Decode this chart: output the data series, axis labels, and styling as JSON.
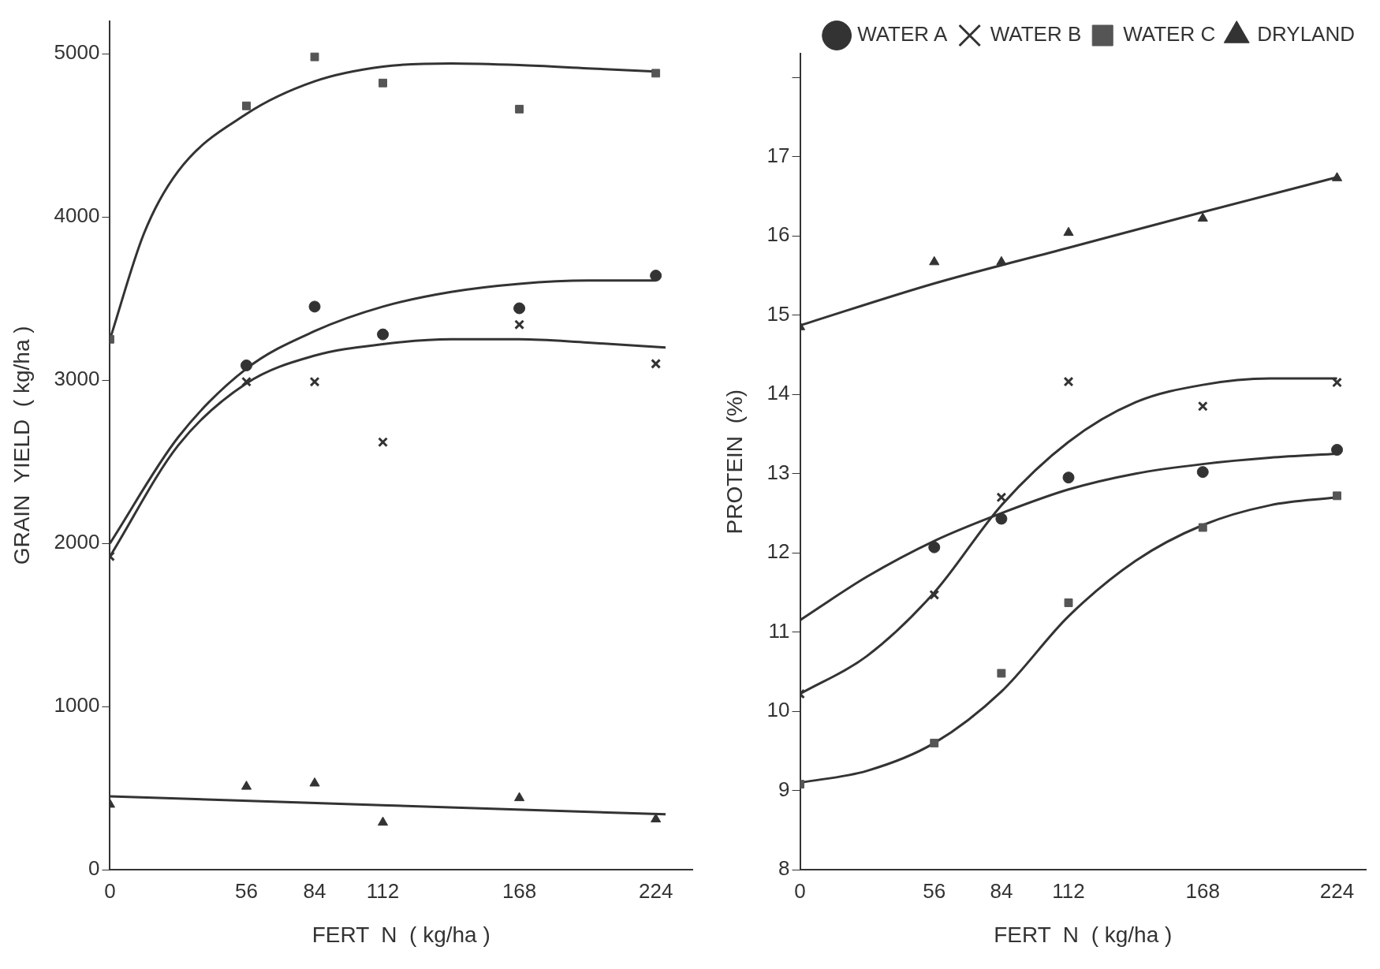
{
  "chart_data": [
    {
      "type": "scatter",
      "xlabel": "FERT  N  ( kg/ha )",
      "ylabel": "GRAIN  YIELD  ( kg/ha )",
      "xlim": [
        0,
        239
      ],
      "ylim": [
        0,
        5200
      ],
      "xticks": [
        0,
        56,
        84,
        112,
        168,
        224
      ],
      "yticks": [
        0,
        1000,
        2000,
        3000,
        4000,
        5000
      ],
      "grid": false,
      "legend": false,
      "series": [
        {
          "color": "#333333",
          "marker": "circle",
          "x": [
            56,
            84,
            112,
            168,
            224
          ],
          "values": [
            3090,
            3450,
            3280,
            3440,
            3640
          ]
        },
        {
          "color": "#333333",
          "marker": "cross",
          "x": [
            0,
            56,
            84,
            112,
            168,
            224
          ],
          "values": [
            1920,
            2990,
            2990,
            2620,
            3340,
            3100
          ]
        },
        {
          "color": "#555555",
          "marker": "square",
          "x": [
            0,
            56,
            84,
            112,
            168,
            224
          ],
          "values": [
            3250,
            4680,
            4980,
            4820,
            4660,
            4880
          ]
        },
        {
          "color": "#333333",
          "marker": "triangle",
          "x": [
            0,
            56,
            84,
            112,
            168,
            224
          ],
          "values": [
            400,
            510,
            530,
            290,
            440,
            310
          ]
        },
        {
          "type": "line",
          "color": "#333333",
          "marker": "none",
          "line_style": "solid",
          "x": [
            0,
            28,
            56,
            84,
            112,
            140,
            168,
            196,
            224
          ],
          "values": [
            2000,
            2650,
            3070,
            3300,
            3450,
            3540,
            3590,
            3610,
            3610
          ]
        },
        {
          "type": "line",
          "color": "#333333",
          "marker": "none",
          "line_style": "solid",
          "x": [
            0,
            28,
            56,
            84,
            112,
            140,
            168,
            196,
            228
          ],
          "values": [
            1920,
            2600,
            2980,
            3150,
            3220,
            3250,
            3250,
            3230,
            3200
          ]
        },
        {
          "type": "line",
          "color": "#333333",
          "marker": "none",
          "line_style": "solid",
          "x": [
            0,
            14,
            28,
            56,
            84,
            112,
            140,
            168,
            196,
            224
          ],
          "values": [
            3250,
            3900,
            4280,
            4630,
            4830,
            4920,
            4940,
            4930,
            4910,
            4890
          ]
        },
        {
          "type": "line",
          "color": "#333333",
          "marker": "none",
          "line_style": "solid",
          "x": [
            0,
            228
          ],
          "values": [
            450,
            340
          ]
        }
      ]
    },
    {
      "type": "scatter",
      "xlabel": "FERT  N  ( kg/ha )",
      "ylabel": "PROTEIN  (%)",
      "xlim": [
        0,
        236
      ],
      "ylim": [
        8,
        18.3
      ],
      "xticks": [
        0,
        56,
        84,
        112,
        168,
        224
      ],
      "yticks": [
        8,
        9,
        10,
        11,
        12,
        13,
        14,
        15,
        16,
        17,
        {
          "value": 18,
          "label": null
        }
      ],
      "grid": false,
      "legend": "top right",
      "series": [
        {
          "name": "WATER A",
          "color": "#333333",
          "marker": "circle",
          "x": [
            56,
            84,
            112,
            168,
            224
          ],
          "values": [
            12.07,
            12.43,
            12.95,
            13.02,
            13.3
          ]
        },
        {
          "name": "WATER B",
          "color": "#333333",
          "marker": "cross",
          "x": [
            0,
            56,
            84,
            112,
            168,
            224
          ],
          "values": [
            10.22,
            11.47,
            12.7,
            14.16,
            13.85,
            14.15
          ]
        },
        {
          "name": "WATER C",
          "color": "#555555",
          "marker": "square",
          "x": [
            0,
            56,
            84,
            112,
            168,
            224
          ],
          "values": [
            9.08,
            9.6,
            10.48,
            11.37,
            12.32,
            12.72
          ]
        },
        {
          "name": "DRYLAND",
          "color": "#333333",
          "marker": "triangle",
          "x": [
            0,
            56,
            84,
            112,
            168,
            224
          ],
          "values": [
            14.85,
            15.67,
            15.67,
            16.04,
            16.22,
            16.73
          ]
        },
        {
          "type": "line",
          "color": "#333333",
          "marker": "none",
          "line_style": "solid",
          "x": [
            0,
            28,
            56,
            84,
            112,
            140,
            168,
            196,
            224
          ],
          "values": [
            11.15,
            11.7,
            12.15,
            12.5,
            12.8,
            13.0,
            13.12,
            13.2,
            13.25
          ]
        },
        {
          "type": "line",
          "color": "#333333",
          "marker": "none",
          "line_style": "solid",
          "x": [
            0,
            28,
            56,
            84,
            112,
            140,
            168,
            196,
            224
          ],
          "values": [
            10.22,
            10.7,
            11.5,
            12.6,
            13.4,
            13.9,
            14.12,
            14.2,
            14.2
          ]
        },
        {
          "type": "line",
          "color": "#333333",
          "marker": "none",
          "line_style": "solid",
          "x": [
            0,
            28,
            56,
            84,
            112,
            140,
            168,
            196,
            224
          ],
          "values": [
            9.1,
            9.25,
            9.6,
            10.25,
            11.2,
            11.9,
            12.35,
            12.6,
            12.7
          ]
        },
        {
          "type": "line",
          "color": "#333333",
          "marker": "none",
          "line_style": "solid",
          "x": [
            0,
            56,
            112,
            168,
            224
          ],
          "values": [
            14.87,
            15.4,
            15.85,
            16.3,
            16.74
          ]
        }
      ]
    }
  ]
}
